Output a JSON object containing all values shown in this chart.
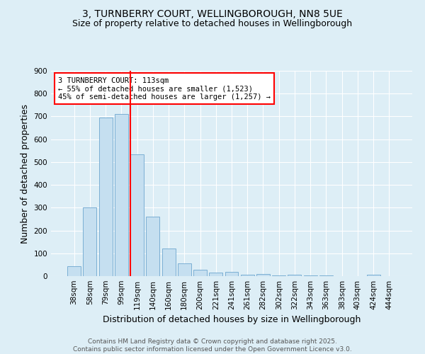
{
  "title_line1": "3, TURNBERRY COURT, WELLINGBOROUGH, NN8 5UE",
  "title_line2": "Size of property relative to detached houses in Wellingborough",
  "xlabel": "Distribution of detached houses by size in Wellingborough",
  "ylabel": "Number of detached properties",
  "categories": [
    "38sqm",
    "58sqm",
    "79sqm",
    "99sqm",
    "119sqm",
    "140sqm",
    "160sqm",
    "180sqm",
    "200sqm",
    "221sqm",
    "241sqm",
    "261sqm",
    "282sqm",
    "302sqm",
    "322sqm",
    "343sqm",
    "363sqm",
    "383sqm",
    "403sqm",
    "424sqm",
    "444sqm"
  ],
  "values": [
    45,
    300,
    695,
    710,
    535,
    262,
    120,
    57,
    27,
    16,
    18,
    5,
    8,
    3,
    7,
    2,
    3,
    0,
    0,
    5,
    0
  ],
  "bar_color": "#c5dff0",
  "bar_edge_color": "#7bafd4",
  "vline_color": "red",
  "annotation_text": "3 TURNBERRY COURT: 113sqm\n← 55% of detached houses are smaller (1,523)\n45% of semi-detached houses are larger (1,257) →",
  "annotation_box_color": "white",
  "annotation_box_edge_color": "red",
  "ylim": [
    0,
    900
  ],
  "yticks": [
    0,
    100,
    200,
    300,
    400,
    500,
    600,
    700,
    800,
    900
  ],
  "background_color": "#ddeef6",
  "plot_bg_color": "#ddeef6",
  "footer": "Contains HM Land Registry data © Crown copyright and database right 2025.\nContains public sector information licensed under the Open Government Licence v3.0.",
  "title_fontsize": 10,
  "subtitle_fontsize": 9,
  "axis_label_fontsize": 9,
  "tick_fontsize": 7.5,
  "footer_fontsize": 6.5,
  "annotation_fontsize": 7.5
}
